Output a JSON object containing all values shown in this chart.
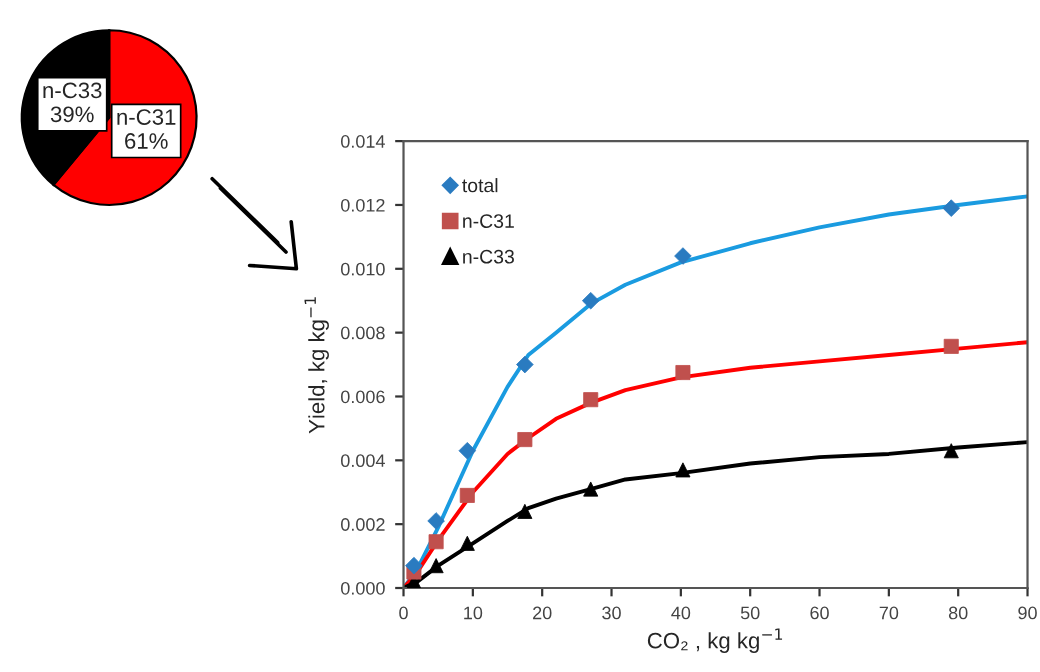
{
  "chart_data": [
    {
      "type": "pie",
      "categories": [
        "n-C31",
        "n-C33"
      ],
      "values": [
        61,
        39
      ],
      "colors": [
        "#ff0000",
        "#000000"
      ],
      "value_labels": [
        "61%",
        "39%"
      ]
    },
    {
      "type": "scatter",
      "xlabel": "CO₂ , kg kg$^{−1}$",
      "ylabel": "Yield, kg kg$^{−1}$",
      "xlim": [
        0,
        90
      ],
      "ylim": [
        0,
        0.014
      ],
      "xticks": [
        0,
        10,
        20,
        30,
        40,
        50,
        60,
        70,
        80,
        90
      ],
      "yticks": [
        {
          "value": 0,
          "label": "0.000"
        },
        {
          "value": 0.002,
          "label": "0.002"
        },
        {
          "value": 0.004,
          "label": "0.004"
        },
        {
          "value": 0.006,
          "label": "0.006"
        },
        {
          "value": 0.008,
          "label": "0.008"
        },
        {
          "value": 0.01,
          "label": "0.010"
        },
        {
          "value": 0.012,
          "label": "0.012"
        },
        {
          "value": 0.014,
          "label": "0.014"
        }
      ],
      "grid": false,
      "legend": "top left",
      "series": [
        {
          "name": "total",
          "color": "#2a7bc0",
          "marker": "diamond",
          "x": [
            1.5,
            4.7,
            9.2,
            17.5,
            27,
            40.3,
            79
          ],
          "values": [
            0.0007,
            0.0021,
            0.0043,
            0.007,
            0.009,
            0.0104,
            0.0119
          ]
        },
        {
          "name": "n-C31",
          "color": "#c0504d",
          "marker": "square",
          "x": [
            1.5,
            4.7,
            9.2,
            17.5,
            27,
            40.3,
            79
          ],
          "values": [
            0.0005,
            0.00145,
            0.0029,
            0.00465,
            0.0059,
            0.00675,
            0.00757
          ]
        },
        {
          "name": "n-C33",
          "color": "#000000",
          "marker": "triangle",
          "x": [
            1.5,
            4.7,
            9.2,
            17.5,
            27,
            40.3,
            79
          ],
          "values": [
            0.0002,
            0.0007,
            0.0014,
            0.0024,
            0.0031,
            0.0037,
            0.0043
          ]
        },
        {
          "type": "line",
          "color": "#1a9be0",
          "x": [
            0,
            2,
            5,
            10,
            15,
            18,
            22,
            27,
            32,
            40,
            50,
            60,
            70,
            80,
            90
          ],
          "values": [
            0,
            0.0006,
            0.0019,
            0.0043,
            0.0063,
            0.0073,
            0.008,
            0.0089,
            0.0095,
            0.0102,
            0.0108,
            0.0113,
            0.0117,
            0.012,
            0.01227
          ]
        },
        {
          "type": "line",
          "color": "#ff0000",
          "x": [
            0,
            2,
            5,
            10,
            15,
            18,
            22,
            27,
            32,
            40,
            50,
            60,
            70,
            80,
            90
          ],
          "values": [
            0,
            0.0005,
            0.0015,
            0.003,
            0.0042,
            0.0047,
            0.0053,
            0.0058,
            0.0062,
            0.0066,
            0.0069,
            0.0071,
            0.0073,
            0.0075,
            0.0077
          ]
        },
        {
          "type": "line",
          "color": "#000000",
          "x": [
            0,
            2,
            5,
            10,
            15,
            18,
            22,
            27,
            32,
            40,
            50,
            60,
            70,
            80,
            90
          ],
          "values": [
            0,
            0.0002,
            0.0007,
            0.0014,
            0.0021,
            0.0025,
            0.0028,
            0.0031,
            0.0034,
            0.0036,
            0.0039,
            0.0041,
            0.0042,
            0.0044,
            0.00457
          ]
        }
      ]
    }
  ]
}
